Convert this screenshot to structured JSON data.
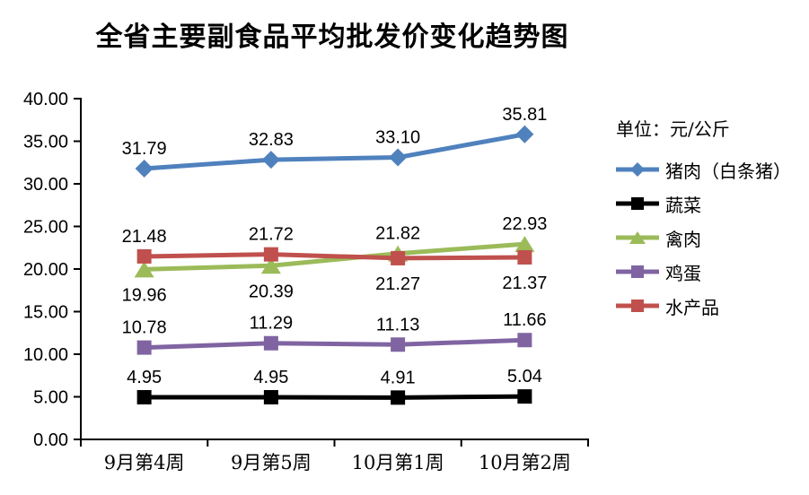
{
  "chart_data": {
    "type": "line",
    "title": "全省主要副食品平均批发价变化趋势图",
    "unit_label": "单位：元/公斤",
    "categories": [
      "9月第4周",
      "9月第5周",
      "10月第1周",
      "10月第2周"
    ],
    "series": [
      {
        "name": "猪肉（白条猪）",
        "color": "#4F81BD",
        "marker": "diamond",
        "values": [
          31.79,
          32.83,
          33.1,
          35.81
        ],
        "label_side": [
          "above",
          "above",
          "above",
          "above"
        ]
      },
      {
        "name": "蔬菜",
        "color": "#000000",
        "marker": "square",
        "values": [
          4.95,
          4.95,
          4.91,
          5.04
        ],
        "label_side": [
          "above",
          "above",
          "above",
          "above"
        ]
      },
      {
        "name": "禽肉",
        "color": "#9BBB59",
        "marker": "triangle",
        "values": [
          19.96,
          20.39,
          21.82,
          22.93
        ],
        "label_side": [
          "below",
          "below",
          "above",
          "above"
        ]
      },
      {
        "name": "鸡蛋",
        "color": "#8064A2",
        "marker": "square",
        "values": [
          10.78,
          11.29,
          11.13,
          11.66
        ],
        "label_side": [
          "above",
          "above",
          "above",
          "above"
        ]
      },
      {
        "name": "水产品",
        "color": "#C0504D",
        "marker": "square",
        "values": [
          21.48,
          21.72,
          21.27,
          21.37
        ],
        "label_side": [
          "above",
          "above",
          "below",
          "below"
        ]
      }
    ],
    "ylim": [
      0,
      40
    ],
    "ytick_step": 5,
    "ytick_decimals": 2,
    "grid": false,
    "legend_position": "right",
    "axis_color": "#000000",
    "background_color": "#FFFFFF"
  }
}
